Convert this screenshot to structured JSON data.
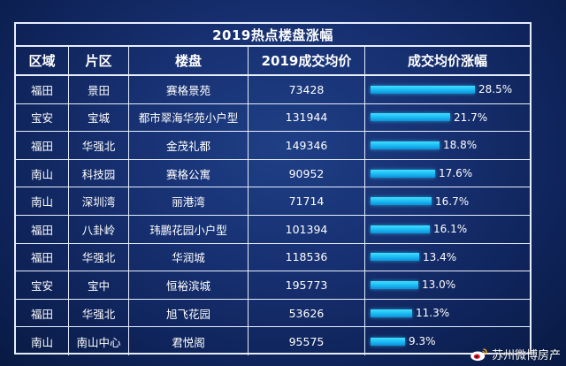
{
  "table": {
    "title": "2019热点楼盘涨幅",
    "headers": [
      "区域",
      "片区",
      "楼盘",
      "2019成交均价",
      "成交均价涨幅"
    ],
    "rows": [
      {
        "district": "福田",
        "area": "景田",
        "project": "赛格景苑",
        "price": "73428",
        "growth": "28.5%",
        "growth_value": 28.5
      },
      {
        "district": "宝安",
        "area": "宝城",
        "project": "都市翠海华苑小户型",
        "price": "131944",
        "growth": "21.7%",
        "growth_value": 21.7
      },
      {
        "district": "福田",
        "area": "华强北",
        "project": "金茂礼都",
        "price": "149346",
        "growth": "18.8%",
        "growth_value": 18.8
      },
      {
        "district": "南山",
        "area": "科技园",
        "project": "赛格公寓",
        "price": "90952",
        "growth": "17.6%",
        "growth_value": 17.6
      },
      {
        "district": "南山",
        "area": "深圳湾",
        "project": "丽港湾",
        "price": "71714",
        "growth": "16.7%",
        "growth_value": 16.7
      },
      {
        "district": "福田",
        "area": "八卦岭",
        "project": "玮鹏花园小户型",
        "price": "101394",
        "growth": "16.1%",
        "growth_value": 16.1
      },
      {
        "district": "福田",
        "area": "华强北",
        "project": "华润城",
        "price": "118536",
        "growth": "13.4%",
        "growth_value": 13.4
      },
      {
        "district": "宝安",
        "area": "宝中",
        "project": "恒裕滨城",
        "price": "195773",
        "growth": "13.0%",
        "growth_value": 13.0
      },
      {
        "district": "福田",
        "area": "华强北",
        "project": "旭飞花园",
        "price": "53626",
        "growth": "11.3%",
        "growth_value": 11.3
      },
      {
        "district": "南山",
        "area": "南山中心",
        "project": "君悦阁",
        "price": "95575",
        "growth": "9.3%",
        "growth_value": 9.3
      }
    ]
  },
  "watermark": {
    "text": "苏州微博房产",
    "icon": "weibo-icon"
  },
  "colors": {
    "background": "#173071",
    "grid_lines": "#e6eefc",
    "bar": "#17b4f0"
  }
}
